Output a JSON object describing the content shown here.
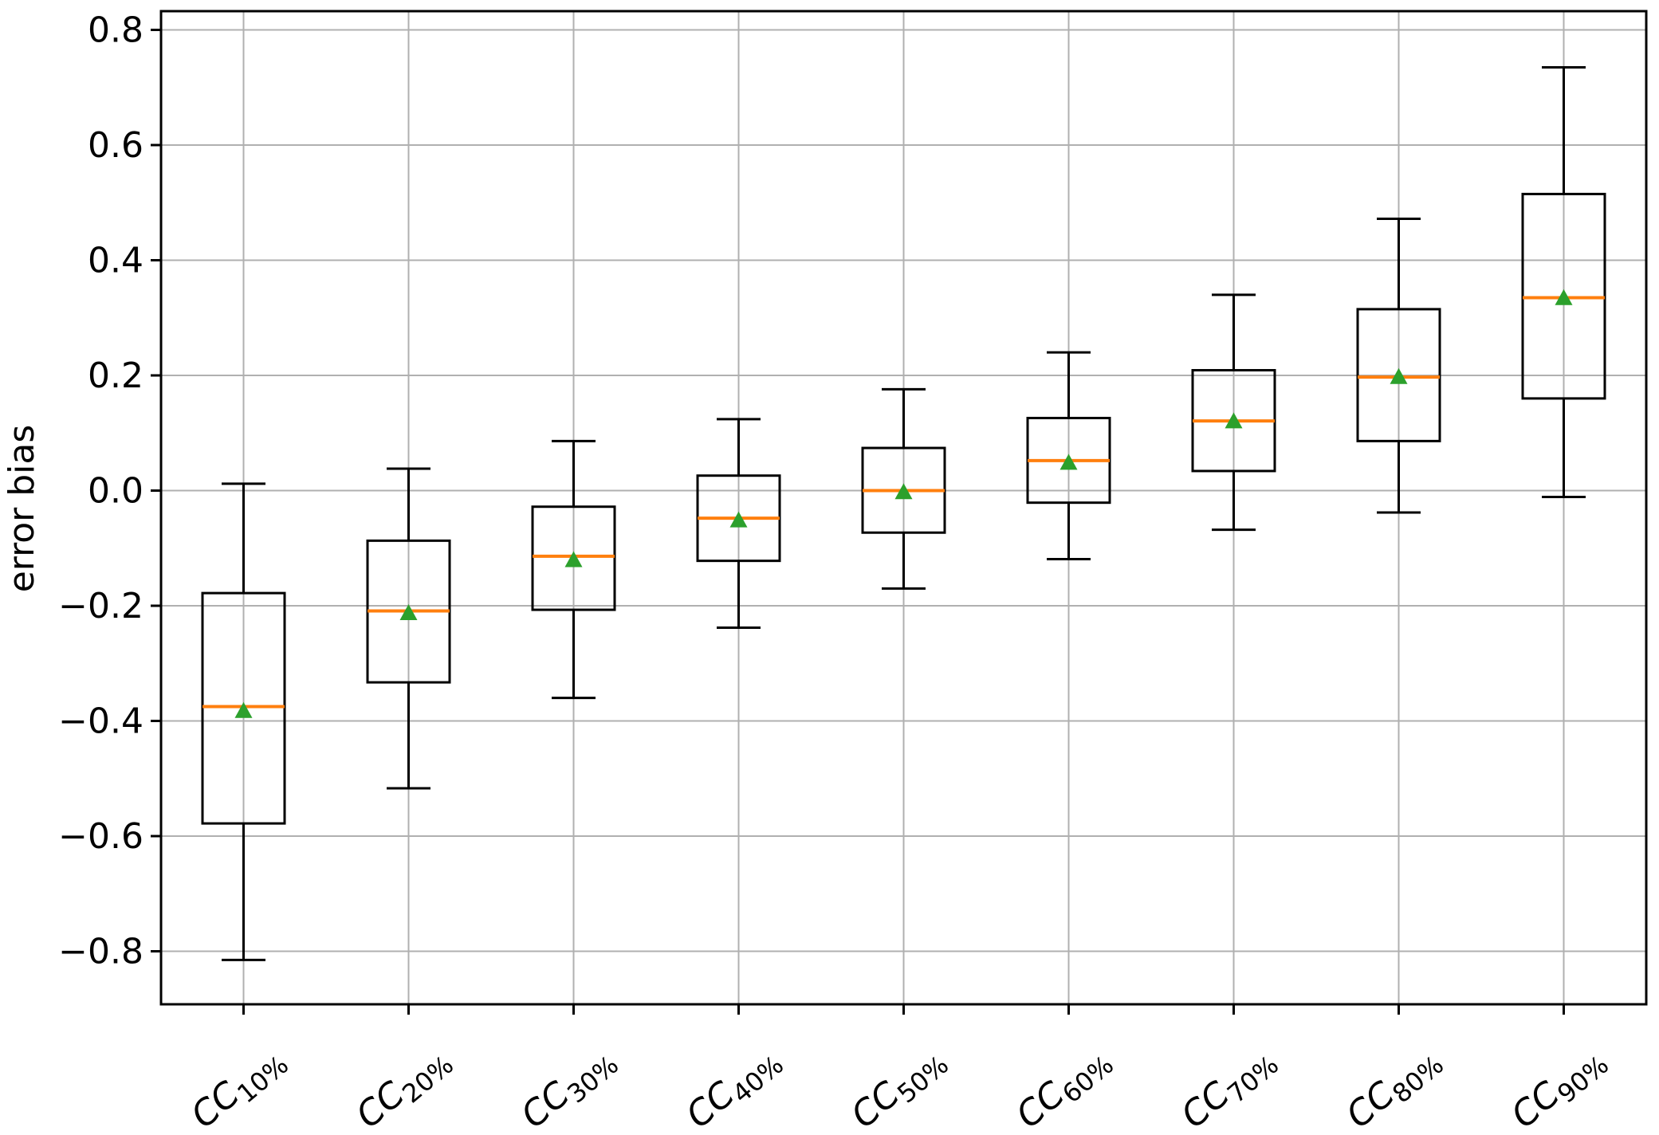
{
  "figure": {
    "background": "#ffffff"
  },
  "chart_data": {
    "type": "boxplot",
    "title": "",
    "xlabel": "",
    "ylabel": "error bias",
    "grid": true,
    "legend_position": "none",
    "ylim": [
      -0.892,
      0.833
    ],
    "yticks": [
      0.8,
      0.6,
      0.4,
      0.2,
      0.0,
      -0.2,
      -0.4,
      -0.6,
      -0.8
    ],
    "ytick_labels": [
      "0.8",
      "0.6",
      "0.4",
      "0.2",
      "0.0",
      "−0.2",
      "−0.4",
      "−0.6",
      "−0.8"
    ],
    "categories": [
      {
        "base": "CC",
        "sub": "10%"
      },
      {
        "base": "CC",
        "sub": "20%"
      },
      {
        "base": "CC",
        "sub": "30%"
      },
      {
        "base": "CC",
        "sub": "40%"
      },
      {
        "base": "CC",
        "sub": "50%"
      },
      {
        "base": "CC",
        "sub": "60%"
      },
      {
        "base": "CC",
        "sub": "70%"
      },
      {
        "base": "CC",
        "sub": "80%"
      },
      {
        "base": "CC",
        "sub": "90%"
      }
    ],
    "boxes": [
      {
        "whislo": -0.815,
        "q1": -0.578,
        "med": -0.375,
        "mean": -0.381,
        "q3": -0.178,
        "whishi": 0.012
      },
      {
        "whislo": -0.517,
        "q1": -0.333,
        "med": -0.209,
        "mean": -0.211,
        "q3": -0.087,
        "whishi": 0.038
      },
      {
        "whislo": -0.36,
        "q1": -0.207,
        "med": -0.114,
        "mean": -0.119,
        "q3": -0.028,
        "whishi": 0.086
      },
      {
        "whislo": -0.238,
        "q1": -0.122,
        "med": -0.048,
        "mean": -0.05,
        "q3": 0.026,
        "whishi": 0.124
      },
      {
        "whislo": -0.17,
        "q1": -0.073,
        "med": 0.0,
        "mean": -0.001,
        "q3": 0.074,
        "whishi": 0.176
      },
      {
        "whislo": -0.119,
        "q1": -0.021,
        "med": 0.052,
        "mean": 0.05,
        "q3": 0.126,
        "whishi": 0.24
      },
      {
        "whislo": -0.068,
        "q1": 0.034,
        "med": 0.121,
        "mean": 0.122,
        "q3": 0.209,
        "whishi": 0.34
      },
      {
        "whislo": -0.038,
        "q1": 0.086,
        "med": 0.197,
        "mean": 0.199,
        "q3": 0.315,
        "whishi": 0.472
      },
      {
        "whislo": -0.011,
        "q1": 0.16,
        "med": 0.335,
        "mean": 0.336,
        "q3": 0.515,
        "whishi": 0.735
      }
    ],
    "colors": {
      "box_line": "#000000",
      "median": "#ff7f0e",
      "mean_marker": "#2ca02c",
      "grid": "#b0b0b0",
      "spine": "#000000",
      "tick_label": "#000000"
    }
  }
}
